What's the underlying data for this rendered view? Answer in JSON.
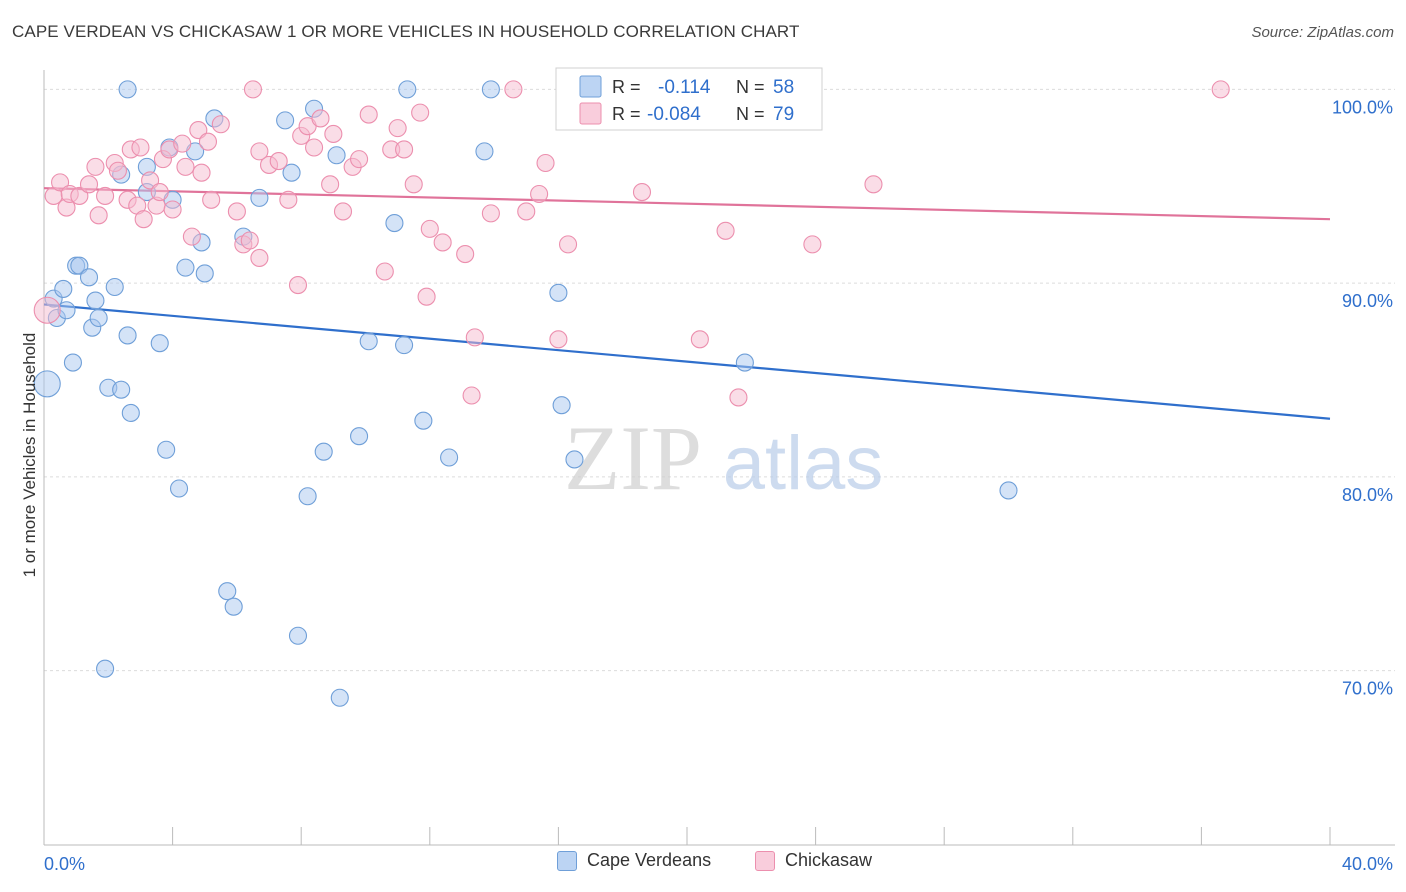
{
  "title": "CAPE VERDEAN VS CHICKASAW 1 OR MORE VEHICLES IN HOUSEHOLD CORRELATION CHART",
  "source": "Source: ZipAtlas.com",
  "watermark": {
    "zip": "ZIP",
    "atlas": "atlas"
  },
  "colors": {
    "blue_fill": "#a9c7ef",
    "blue_stroke": "#6f9fd8",
    "blue_line": "#2f6fcc",
    "pink_fill": "#f6bcd0",
    "pink_stroke": "#ec8fae",
    "pink_line": "#e0739a",
    "value_text": "#2f6fcc",
    "grid": "#dcdcdc"
  },
  "legend_top": {
    "rows": [
      {
        "r_label": "R =",
        "r_value": "-0.114",
        "n_label": "N =",
        "n_value": "58",
        "series": "blue"
      },
      {
        "r_label": "R =",
        "r_value": "-0.084",
        "n_label": "N =",
        "n_value": "79",
        "series": "pink"
      }
    ]
  },
  "legend_bottom": [
    {
      "label": "Cape Verdeans",
      "series": "blue"
    },
    {
      "label": "Chickasaw",
      "series": "pink"
    }
  ],
  "chart_data": {
    "type": "scatter",
    "title": "CAPE VERDEAN VS CHICKASAW 1 OR MORE VEHICLES IN HOUSEHOLD CORRELATION CHART",
    "xlabel": "",
    "ylabel": "1 or more Vehicles in Household",
    "xlim": [
      0,
      40
    ],
    "ylim": [
      61,
      101
    ],
    "x_tick_labels": [
      {
        "value": 0,
        "label": "0.0%"
      },
      {
        "value": 40,
        "label": "40.0%"
      }
    ],
    "y_tick_labels": [
      {
        "value": 100,
        "label": "100.0%"
      },
      {
        "value": 90,
        "label": "90.0%"
      },
      {
        "value": 80,
        "label": "80.0%"
      },
      {
        "value": 70,
        "label": "70.0%"
      }
    ],
    "series": [
      {
        "name": "Cape Verdeans",
        "color": "blue",
        "trend": {
          "x": [
            0,
            40
          ],
          "y": [
            88.9,
            83.0
          ]
        },
        "points": [
          [
            0.1,
            84.8
          ],
          [
            0.3,
            89.2
          ],
          [
            0.4,
            88.2
          ],
          [
            0.6,
            89.7
          ],
          [
            0.7,
            88.6
          ],
          [
            0.9,
            85.9
          ],
          [
            1.0,
            90.9
          ],
          [
            1.1,
            90.9
          ],
          [
            1.4,
            90.3
          ],
          [
            1.5,
            87.7
          ],
          [
            1.6,
            89.1
          ],
          [
            1.7,
            88.2
          ],
          [
            2.0,
            84.6
          ],
          [
            2.2,
            89.8
          ],
          [
            2.4,
            84.5
          ],
          [
            2.4,
            95.6
          ],
          [
            2.6,
            87.3
          ],
          [
            2.7,
            83.3
          ],
          [
            3.2,
            96.0
          ],
          [
            3.2,
            94.7
          ],
          [
            3.6,
            86.9
          ],
          [
            3.8,
            81.4
          ],
          [
            3.9,
            97.0
          ],
          [
            4.0,
            94.3
          ],
          [
            4.2,
            79.4
          ],
          [
            4.4,
            90.8
          ],
          [
            4.7,
            96.8
          ],
          [
            4.9,
            92.1
          ],
          [
            5.0,
            90.5
          ],
          [
            5.3,
            98.5
          ],
          [
            5.7,
            74.1
          ],
          [
            5.9,
            73.3
          ],
          [
            6.2,
            92.4
          ],
          [
            6.7,
            94.4
          ],
          [
            7.5,
            98.4
          ],
          [
            7.7,
            95.7
          ],
          [
            7.9,
            71.8
          ],
          [
            8.2,
            79.0
          ],
          [
            8.4,
            99.0
          ],
          [
            8.7,
            81.3
          ],
          [
            9.1,
            96.6
          ],
          [
            9.2,
            68.6
          ],
          [
            9.8,
            82.1
          ],
          [
            10.1,
            87.0
          ],
          [
            10.9,
            93.1
          ],
          [
            11.2,
            86.8
          ],
          [
            11.3,
            100.0
          ],
          [
            11.8,
            82.9
          ],
          [
            12.6,
            81.0
          ],
          [
            13.7,
            96.8
          ],
          [
            13.9,
            100.0
          ],
          [
            16.0,
            89.5
          ],
          [
            16.1,
            83.7
          ],
          [
            16.5,
            80.9
          ],
          [
            21.8,
            85.9
          ],
          [
            30.0,
            79.3
          ],
          [
            2.6,
            100.0
          ],
          [
            1.9,
            70.1
          ]
        ]
      },
      {
        "name": "Chickasaw",
        "color": "pink",
        "trend": {
          "x": [
            0,
            40
          ],
          "y": [
            94.9,
            93.3
          ]
        },
        "points": [
          [
            0.1,
            88.6
          ],
          [
            0.3,
            94.5
          ],
          [
            0.5,
            95.2
          ],
          [
            0.7,
            93.9
          ],
          [
            0.8,
            94.6
          ],
          [
            1.1,
            94.5
          ],
          [
            1.4,
            95.1
          ],
          [
            1.6,
            96.0
          ],
          [
            1.7,
            93.5
          ],
          [
            1.9,
            94.5
          ],
          [
            2.2,
            96.2
          ],
          [
            2.3,
            95.8
          ],
          [
            2.6,
            94.3
          ],
          [
            2.7,
            96.9
          ],
          [
            2.9,
            94.0
          ],
          [
            3.1,
            93.3
          ],
          [
            3.3,
            95.3
          ],
          [
            3.5,
            94.0
          ],
          [
            3.6,
            94.7
          ],
          [
            3.7,
            96.4
          ],
          [
            3.9,
            96.9
          ],
          [
            4.0,
            93.8
          ],
          [
            4.3,
            97.2
          ],
          [
            4.4,
            96.0
          ],
          [
            4.6,
            92.4
          ],
          [
            4.8,
            97.9
          ],
          [
            4.9,
            95.7
          ],
          [
            5.1,
            97.3
          ],
          [
            5.2,
            94.3
          ],
          [
            5.5,
            98.2
          ],
          [
            6.0,
            93.7
          ],
          [
            6.2,
            92.0
          ],
          [
            6.4,
            92.2
          ],
          [
            6.5,
            100.0
          ],
          [
            6.7,
            91.3
          ],
          [
            7.0,
            96.1
          ],
          [
            7.3,
            96.3
          ],
          [
            7.6,
            94.3
          ],
          [
            7.9,
            89.9
          ],
          [
            8.0,
            97.6
          ],
          [
            8.2,
            98.1
          ],
          [
            8.4,
            97.0
          ],
          [
            8.6,
            98.5
          ],
          [
            8.9,
            95.1
          ],
          [
            9.0,
            97.7
          ],
          [
            9.3,
            93.7
          ],
          [
            9.6,
            96.0
          ],
          [
            9.8,
            96.4
          ],
          [
            10.1,
            98.7
          ],
          [
            10.6,
            90.6
          ],
          [
            10.8,
            96.9
          ],
          [
            11.0,
            98.0
          ],
          [
            11.2,
            96.9
          ],
          [
            11.5,
            95.1
          ],
          [
            11.7,
            98.8
          ],
          [
            11.9,
            89.3
          ],
          [
            12.0,
            92.8
          ],
          [
            12.4,
            92.1
          ],
          [
            13.1,
            91.5
          ],
          [
            13.3,
            84.2
          ],
          [
            13.4,
            87.2
          ],
          [
            13.9,
            93.6
          ],
          [
            14.6,
            100.0
          ],
          [
            15.0,
            93.7
          ],
          [
            15.4,
            94.6
          ],
          [
            15.6,
            96.2
          ],
          [
            16.0,
            87.1
          ],
          [
            16.3,
            92.0
          ],
          [
            17.3,
            100.0
          ],
          [
            18.6,
            94.7
          ],
          [
            20.4,
            87.1
          ],
          [
            21.2,
            92.7
          ],
          [
            21.6,
            84.1
          ],
          [
            21.9,
            100.0
          ],
          [
            23.9,
            92.0
          ],
          [
            25.8,
            95.1
          ],
          [
            36.6,
            100.0
          ],
          [
            6.7,
            96.8
          ],
          [
            3.0,
            97.0
          ]
        ]
      }
    ],
    "grid": true,
    "legend_position": "top-center"
  }
}
